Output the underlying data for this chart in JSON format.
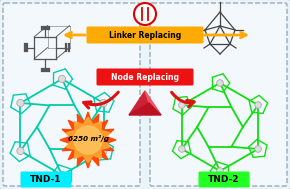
{
  "outer_bg": "#dde8f0",
  "panel_bg": "#f0f7ff",
  "linker_text": "Linker Replacing",
  "node_text": "Node Replacing",
  "tnd1_label": "TND-1",
  "tnd2_label": "TND-2",
  "tnd1_bg": "#00eeff",
  "tnd2_bg": "#22ff22",
  "surface_area": "6250 m²/g",
  "linker_box_color": "#ffaa00",
  "node_box_color": "#ee1111",
  "arrow_color_orange": "#ffaa00",
  "arrow_color_red": "#dd1111",
  "tnd1_color": "#00ccaa",
  "tnd2_color": "#11dd11",
  "framework1_color": "#555555",
  "framework2_color": "#444444",
  "linker_icon_color": "#dd0000",
  "tetra_color_left": "#cc2244",
  "tetra_color_right": "#ee5577",
  "tetra_color_front": "#dd3355",
  "gray_node_color": "#aaaaaa"
}
